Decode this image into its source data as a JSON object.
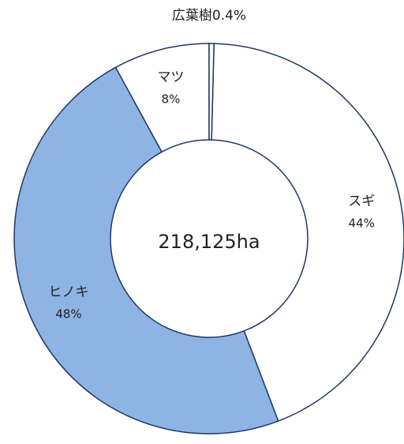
{
  "chart_data": {
    "type": "donut",
    "categories": [
      "広葉樹",
      "スギ",
      "ヒノキ",
      "マツ"
    ],
    "values": [
      0.4,
      44,
      48,
      8
    ],
    "value_labels": [
      "0.4%",
      "44%",
      "48%",
      "8%"
    ],
    "colors": [
      "#ffffff",
      "#ffffff",
      "#8db4e2",
      "#ffffff"
    ],
    "center_label": "218,125ha"
  }
}
